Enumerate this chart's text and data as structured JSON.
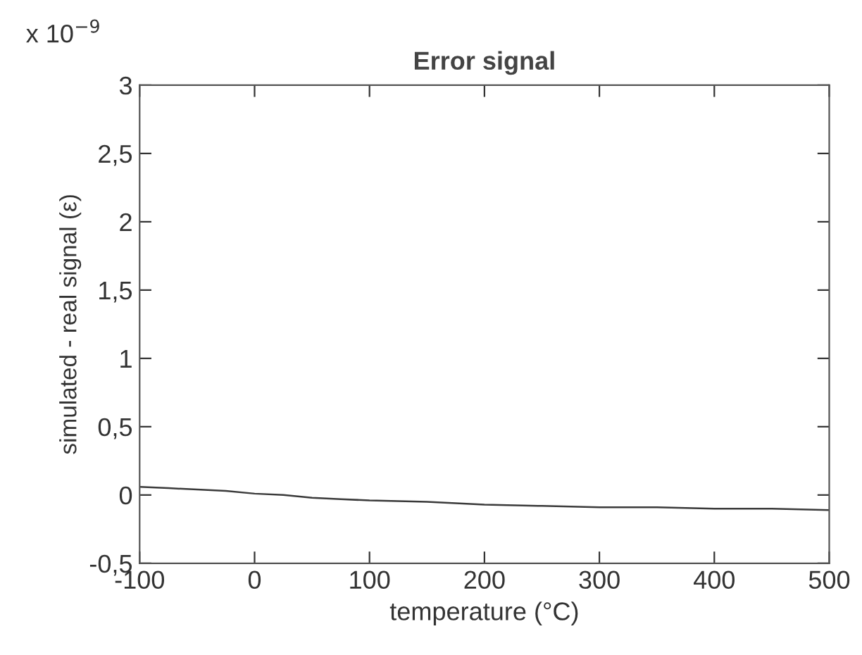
{
  "chart_data": {
    "type": "line",
    "title": "Error signal",
    "xlabel": "temperature (°C)",
    "ylabel": "simulated - real signal (ε)",
    "annotations": [
      "x 10$^{−9}$"
    ],
    "x": [
      -100,
      -75,
      -50,
      -25,
      0,
      25,
      50,
      75,
      100,
      150,
      200,
      250,
      300,
      350,
      400,
      450,
      500
    ],
    "series": [
      {
        "color": "#3a3a3a",
        "values": [
          0.06,
          0.05,
          0.04,
          0.03,
          0.01,
          0.0,
          -0.02,
          -0.03,
          -0.04,
          -0.05,
          -0.07,
          -0.08,
          -0.09,
          -0.09,
          -0.1,
          -0.1,
          -0.11
        ]
      }
    ],
    "xlim": [
      -100,
      500
    ],
    "xticks": [
      -100,
      0,
      100,
      200,
      300,
      400,
      500
    ],
    "ylim": [
      -0.5,
      3
    ],
    "yticks": [
      {
        "value": -0.5,
        "label": "-0,5"
      },
      0,
      {
        "value": 0.5,
        "label": "0,5"
      },
      1,
      {
        "value": 1.5,
        "label": "1,5"
      },
      2,
      {
        "value": 2.5,
        "label": "2,5"
      },
      3
    ],
    "grid": false,
    "line_style": "solid",
    "marker": "none"
  }
}
